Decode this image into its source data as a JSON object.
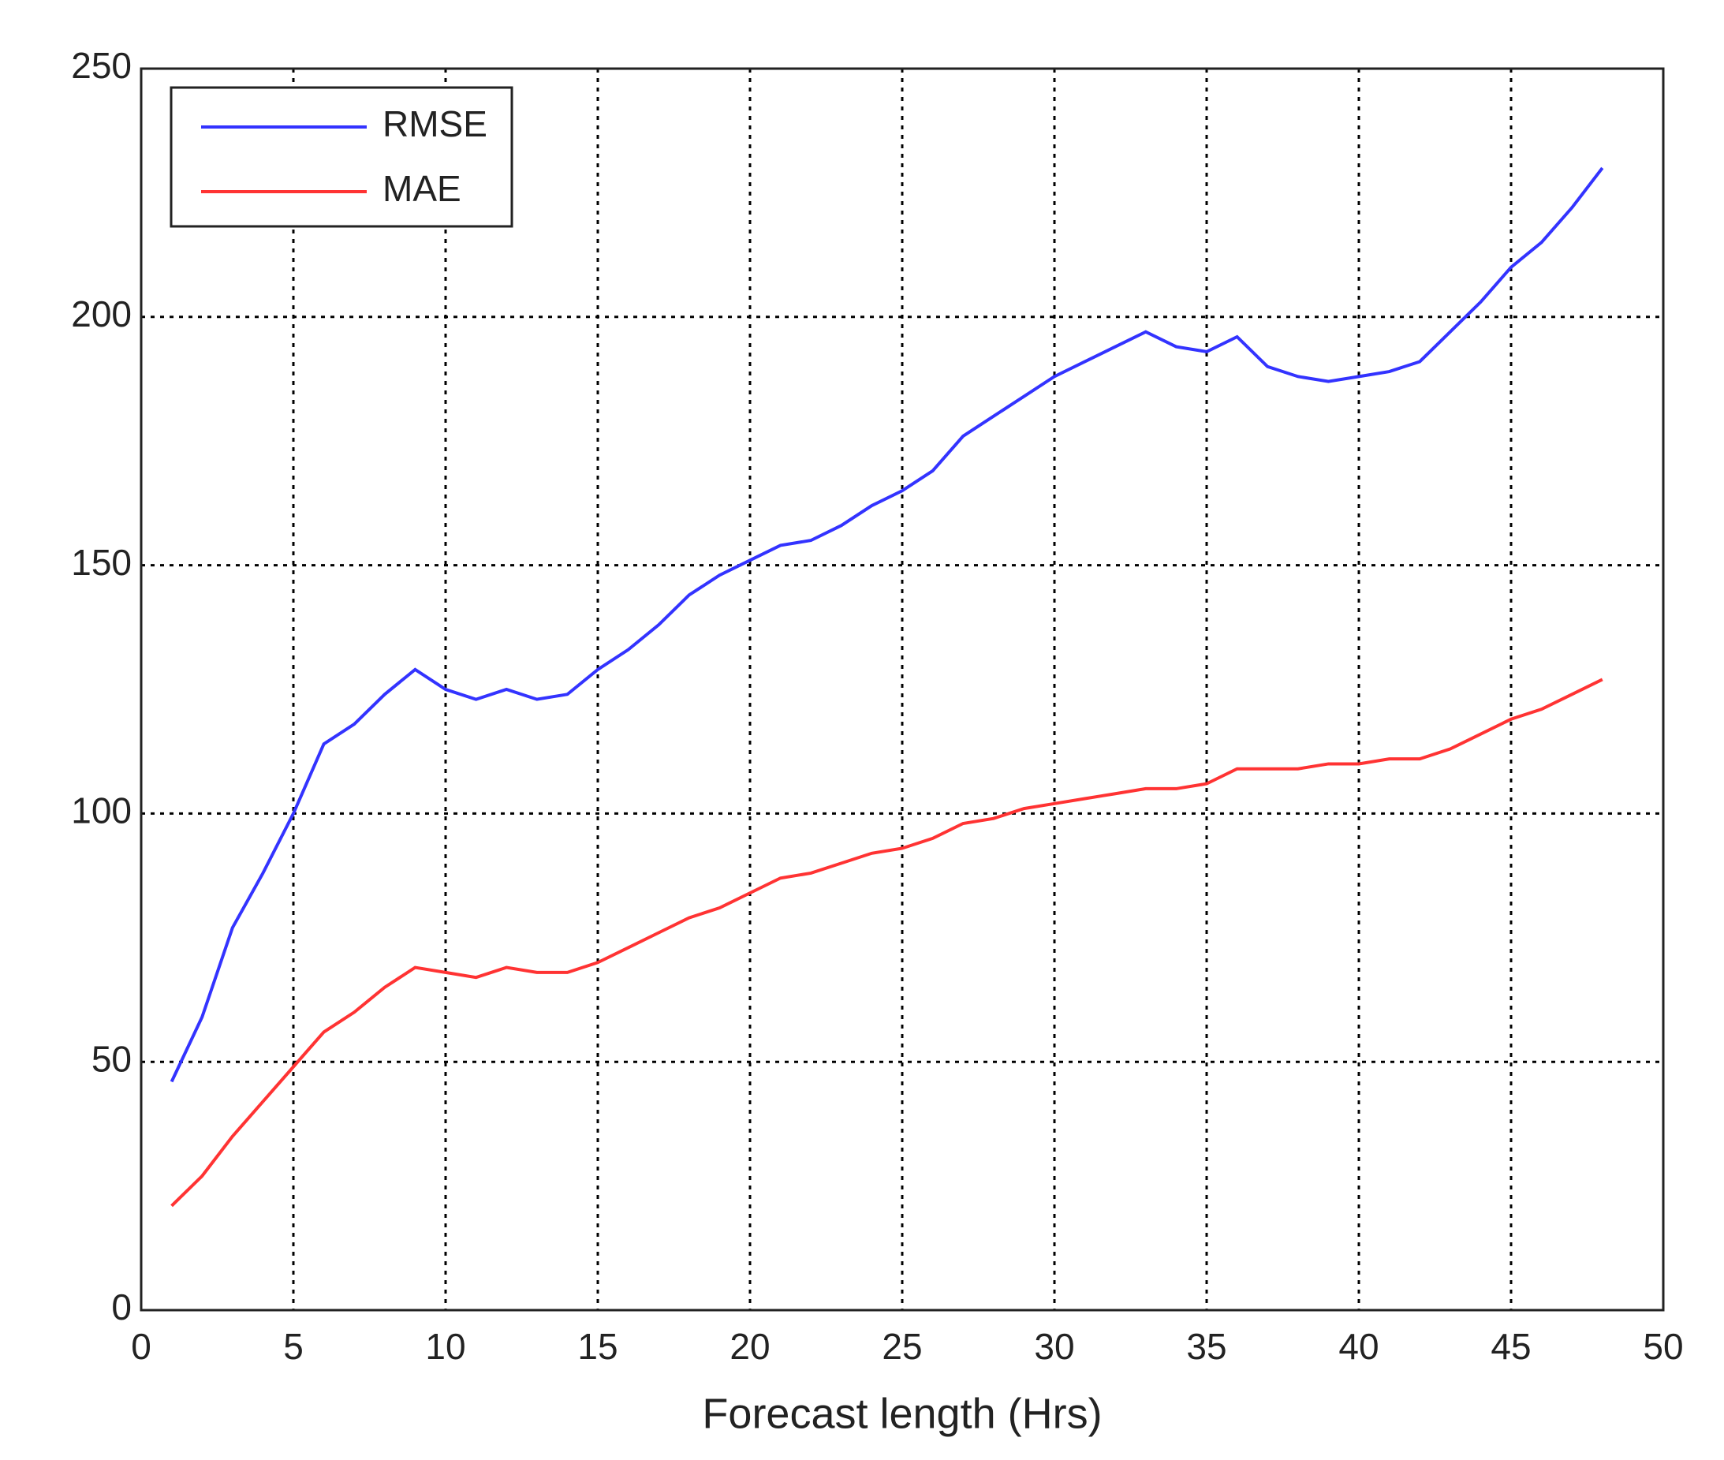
{
  "chart_data": {
    "type": "line",
    "x_label": "Forecast length (Hrs)",
    "x": [
      1,
      2,
      3,
      4,
      5,
      6,
      7,
      8,
      9,
      10,
      11,
      12,
      13,
      14,
      15,
      16,
      17,
      18,
      19,
      20,
      21,
      22,
      23,
      24,
      25,
      26,
      27,
      28,
      29,
      30,
      31,
      32,
      33,
      34,
      35,
      36,
      37,
      38,
      39,
      40,
      41,
      42,
      43,
      44,
      45,
      46,
      47,
      48
    ],
    "series": [
      {
        "name": "RMSE",
        "color": "#3333ff",
        "values": [
          46,
          59,
          77,
          88,
          100,
          114,
          118,
          124,
          129,
          125,
          123,
          125,
          123,
          124,
          129,
          133,
          138,
          144,
          148,
          151,
          154,
          155,
          158,
          162,
          165,
          169,
          176,
          180,
          184,
          188,
          191,
          194,
          197,
          194,
          193,
          196,
          190,
          188,
          187,
          188,
          189,
          191,
          197,
          203,
          210,
          215,
          222,
          230
        ]
      },
      {
        "name": "MAE",
        "color": "#ff3333",
        "values": [
          21,
          27,
          35,
          42,
          49,
          56,
          60,
          65,
          69,
          68,
          67,
          69,
          68,
          68,
          70,
          73,
          76,
          79,
          81,
          84,
          87,
          88,
          90,
          92,
          93,
          95,
          98,
          99,
          101,
          102,
          103,
          104,
          105,
          105,
          106,
          109,
          109,
          109,
          110,
          110,
          111,
          111,
          113,
          116,
          119,
          121,
          124,
          127
        ]
      }
    ],
    "xlim": [
      0,
      50
    ],
    "xticks": [
      0,
      5,
      10,
      15,
      20,
      25,
      30,
      35,
      40,
      45,
      50
    ],
    "ylim": [
      0,
      250
    ],
    "yticks": [
      0,
      50,
      100,
      150,
      200,
      250
    ],
    "grid": true,
    "legend": "upper left"
  }
}
